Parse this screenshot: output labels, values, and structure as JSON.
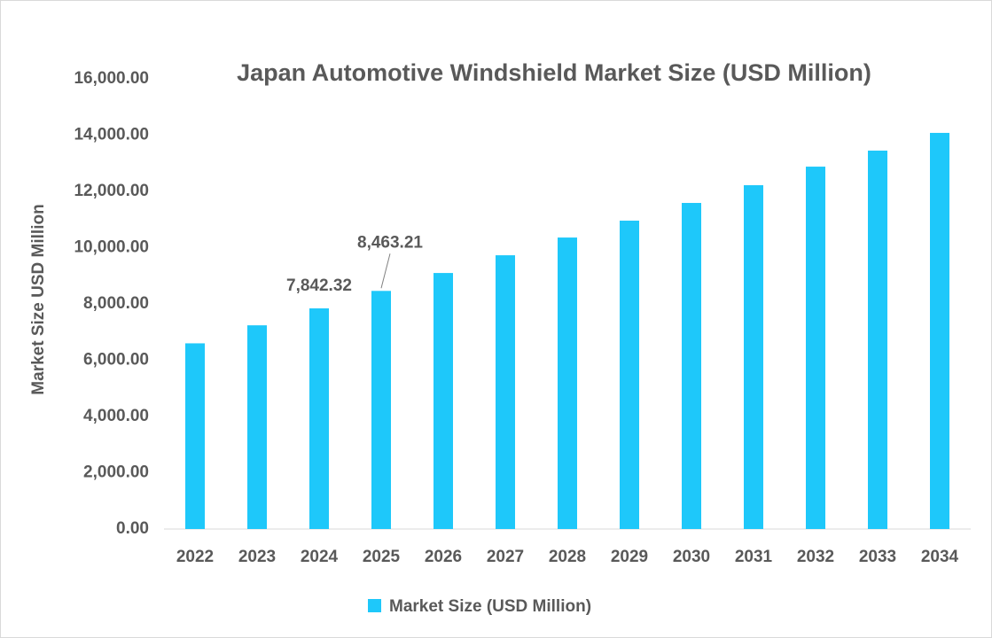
{
  "chart_data": {
    "type": "bar",
    "title": "Japan Automotive Windshield Market Size (USD Million)",
    "y_label": "Market Size USD Million",
    "categories": [
      "2022",
      "2023",
      "2024",
      "2025",
      "2026",
      "2027",
      "2028",
      "2029",
      "2030",
      "2031",
      "2032",
      "2033",
      "2034"
    ],
    "series": [
      {
        "name": "Market Size (USD Million)",
        "color": "#1ec8fa",
        "values": [
          6600,
          7240,
          7842.32,
          8463.21,
          9100,
          9730,
          10360,
          10960,
          11590,
          12220,
          12880,
          13450,
          14080
        ],
        "value_labels": [
          null,
          null,
          "7,842.32",
          "8,463.21",
          null,
          null,
          null,
          null,
          null,
          null,
          null,
          null,
          null
        ]
      }
    ],
    "ylim": [
      0,
      16000
    ],
    "yticks": [
      {
        "value": 0,
        "label": "0.00"
      },
      {
        "value": 2000,
        "label": "2,000.00"
      },
      {
        "value": 4000,
        "label": "4,000.00"
      },
      {
        "value": 6000,
        "label": "6,000.00"
      },
      {
        "value": 8000,
        "label": "8,000.00"
      },
      {
        "value": 10000,
        "label": "10,000.00"
      },
      {
        "value": 12000,
        "label": "12,000.00"
      },
      {
        "value": 14000,
        "label": "14,000.00"
      },
      {
        "value": 16000,
        "label": "16,000.00"
      }
    ],
    "grid": false,
    "legend": "bottom"
  }
}
